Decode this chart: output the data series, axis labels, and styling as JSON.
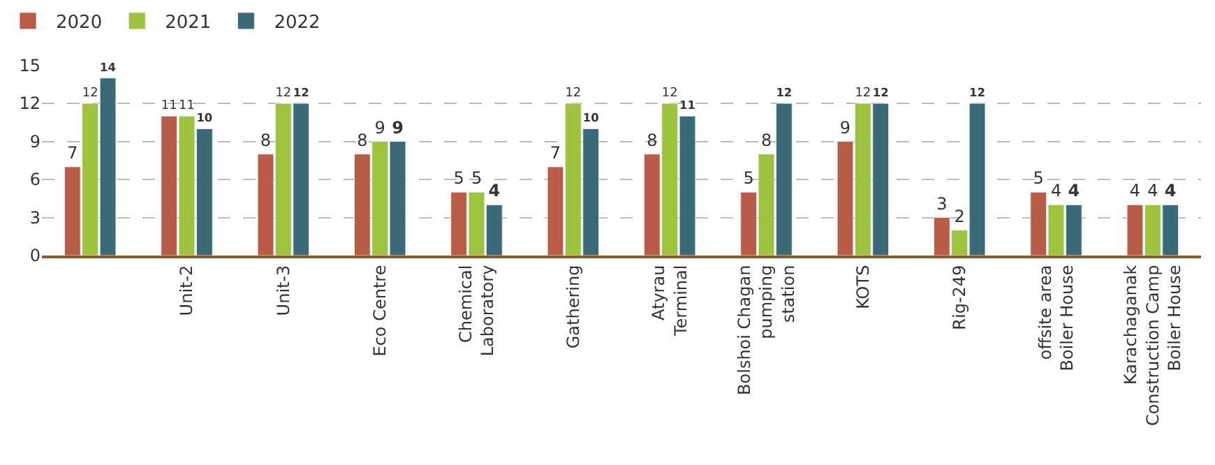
{
  "chart_data": {
    "type": "bar",
    "categories": [
      null,
      "Unit-2",
      "Unit-3",
      "Eco Centre",
      "Chemical\nLaboratory",
      "Gathering",
      "Atyrau\nTerminal",
      "Bolshoi Chagan\npumping\nstation",
      "KOTS",
      "Rig-249",
      "offsite area\nBoiler House",
      "Karachaganak\nConstruction Camp\nBoiler House"
    ],
    "series": [
      {
        "name": "2020",
        "color": "#b85c48",
        "values": [
          7,
          11,
          8,
          8,
          5,
          7,
          8,
          5,
          9,
          3,
          5,
          4
        ]
      },
      {
        "name": "2021",
        "color": "#9dc23b",
        "values": [
          12,
          11,
          12,
          9,
          5,
          12,
          12,
          8,
          12,
          2,
          4,
          4
        ]
      },
      {
        "name": "2022",
        "color": "#3a6a78",
        "values": [
          14,
          10,
          12,
          9,
          4,
          10,
          11,
          12,
          12,
          12,
          4,
          4
        ]
      }
    ],
    "ylim": [
      0,
      15
    ],
    "yticks": [
      0,
      3,
      6,
      9,
      12,
      15
    ],
    "grid": "y",
    "legend": "top left",
    "data_labels": true
  }
}
